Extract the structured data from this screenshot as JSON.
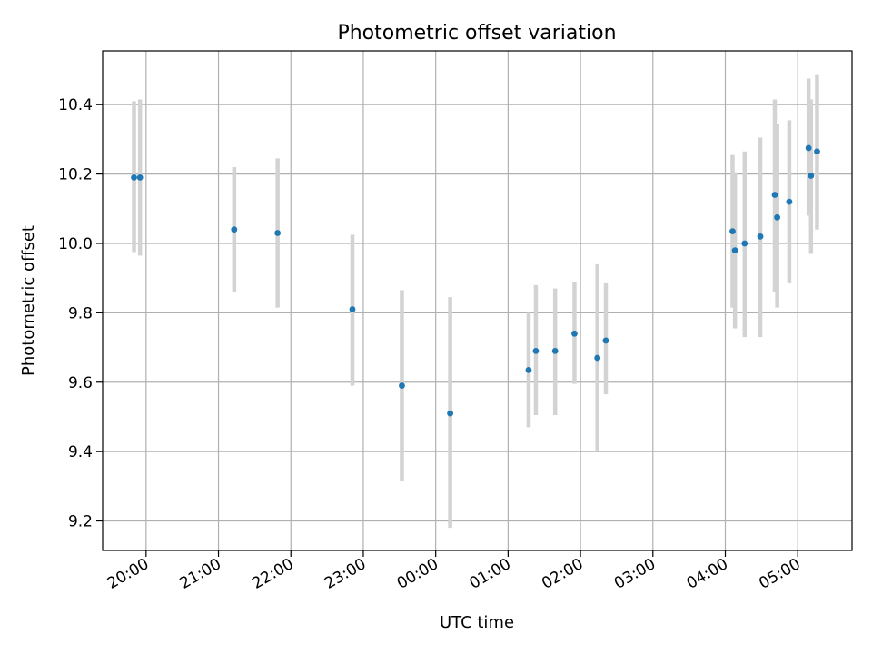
{
  "chart_data": {
    "type": "scatter",
    "title": "Photometric offset variation",
    "xlabel": "UTC time",
    "ylabel": "Photometric offset",
    "x_ticks": [
      "20:00",
      "21:00",
      "22:00",
      "23:00",
      "00:00",
      "01:00",
      "02:00",
      "03:00",
      "04:00",
      "05:00"
    ],
    "x_tick_hours": [
      0,
      1,
      2,
      3,
      4,
      5,
      6,
      7,
      8,
      9
    ],
    "x_range_hours": [
      -0.6,
      9.75
    ],
    "x_reference": "20:00",
    "y_ticks": [
      9.2,
      9.4,
      9.6,
      9.8,
      10.0,
      10.2,
      10.4
    ],
    "ylim": [
      9.115,
      10.555
    ],
    "grid": true,
    "marker_color": "#1f77b4",
    "errorbar_color": "#d3d3d3",
    "points": [
      {
        "time": "19:50",
        "y": 10.19,
        "err_low": 9.975,
        "err_high": 10.41
      },
      {
        "time": "19:55",
        "y": 10.19,
        "err_low": 9.965,
        "err_high": 10.415
      },
      {
        "time": "21:13",
        "y": 10.04,
        "err_low": 9.86,
        "err_high": 10.22
      },
      {
        "time": "21:49",
        "y": 10.03,
        "err_low": 9.815,
        "err_high": 10.245
      },
      {
        "time": "22:51",
        "y": 9.81,
        "err_low": 9.59,
        "err_high": 10.025
      },
      {
        "time": "23:32",
        "y": 9.59,
        "err_low": 9.315,
        "err_high": 9.865
      },
      {
        "time": "00:12",
        "y": 9.51,
        "err_low": 9.18,
        "err_high": 9.845
      },
      {
        "time": "01:17",
        "y": 9.635,
        "err_low": 9.47,
        "err_high": 9.8
      },
      {
        "time": "01:23",
        "y": 9.69,
        "err_low": 9.505,
        "err_high": 9.88
      },
      {
        "time": "01:39",
        "y": 9.69,
        "err_low": 9.505,
        "err_high": 9.87
      },
      {
        "time": "01:55",
        "y": 9.74,
        "err_low": 9.595,
        "err_high": 9.89
      },
      {
        "time": "02:14",
        "y": 9.67,
        "err_low": 9.4,
        "err_high": 9.94
      },
      {
        "time": "02:21",
        "y": 9.72,
        "err_low": 9.565,
        "err_high": 9.885
      },
      {
        "time": "04:06",
        "y": 10.035,
        "err_low": 9.815,
        "err_high": 10.255
      },
      {
        "time": "04:08",
        "y": 9.98,
        "err_low": 9.755,
        "err_high": 10.205
      },
      {
        "time": "04:16",
        "y": 10.0,
        "err_low": 9.73,
        "err_high": 10.265
      },
      {
        "time": "04:29",
        "y": 10.02,
        "err_low": 9.73,
        "err_high": 10.305
      },
      {
        "time": "04:41",
        "y": 10.14,
        "err_low": 9.86,
        "err_high": 10.415
      },
      {
        "time": "04:43",
        "y": 10.075,
        "err_low": 9.815,
        "err_high": 10.345
      },
      {
        "time": "04:53",
        "y": 10.12,
        "err_low": 9.885,
        "err_high": 10.355
      },
      {
        "time": "05:09",
        "y": 10.275,
        "err_low": 10.08,
        "err_high": 10.475
      },
      {
        "time": "05:11",
        "y": 10.195,
        "err_low": 9.97,
        "err_high": 10.415
      },
      {
        "time": "05:16",
        "y": 10.265,
        "err_low": 10.04,
        "err_high": 10.485
      }
    ]
  }
}
